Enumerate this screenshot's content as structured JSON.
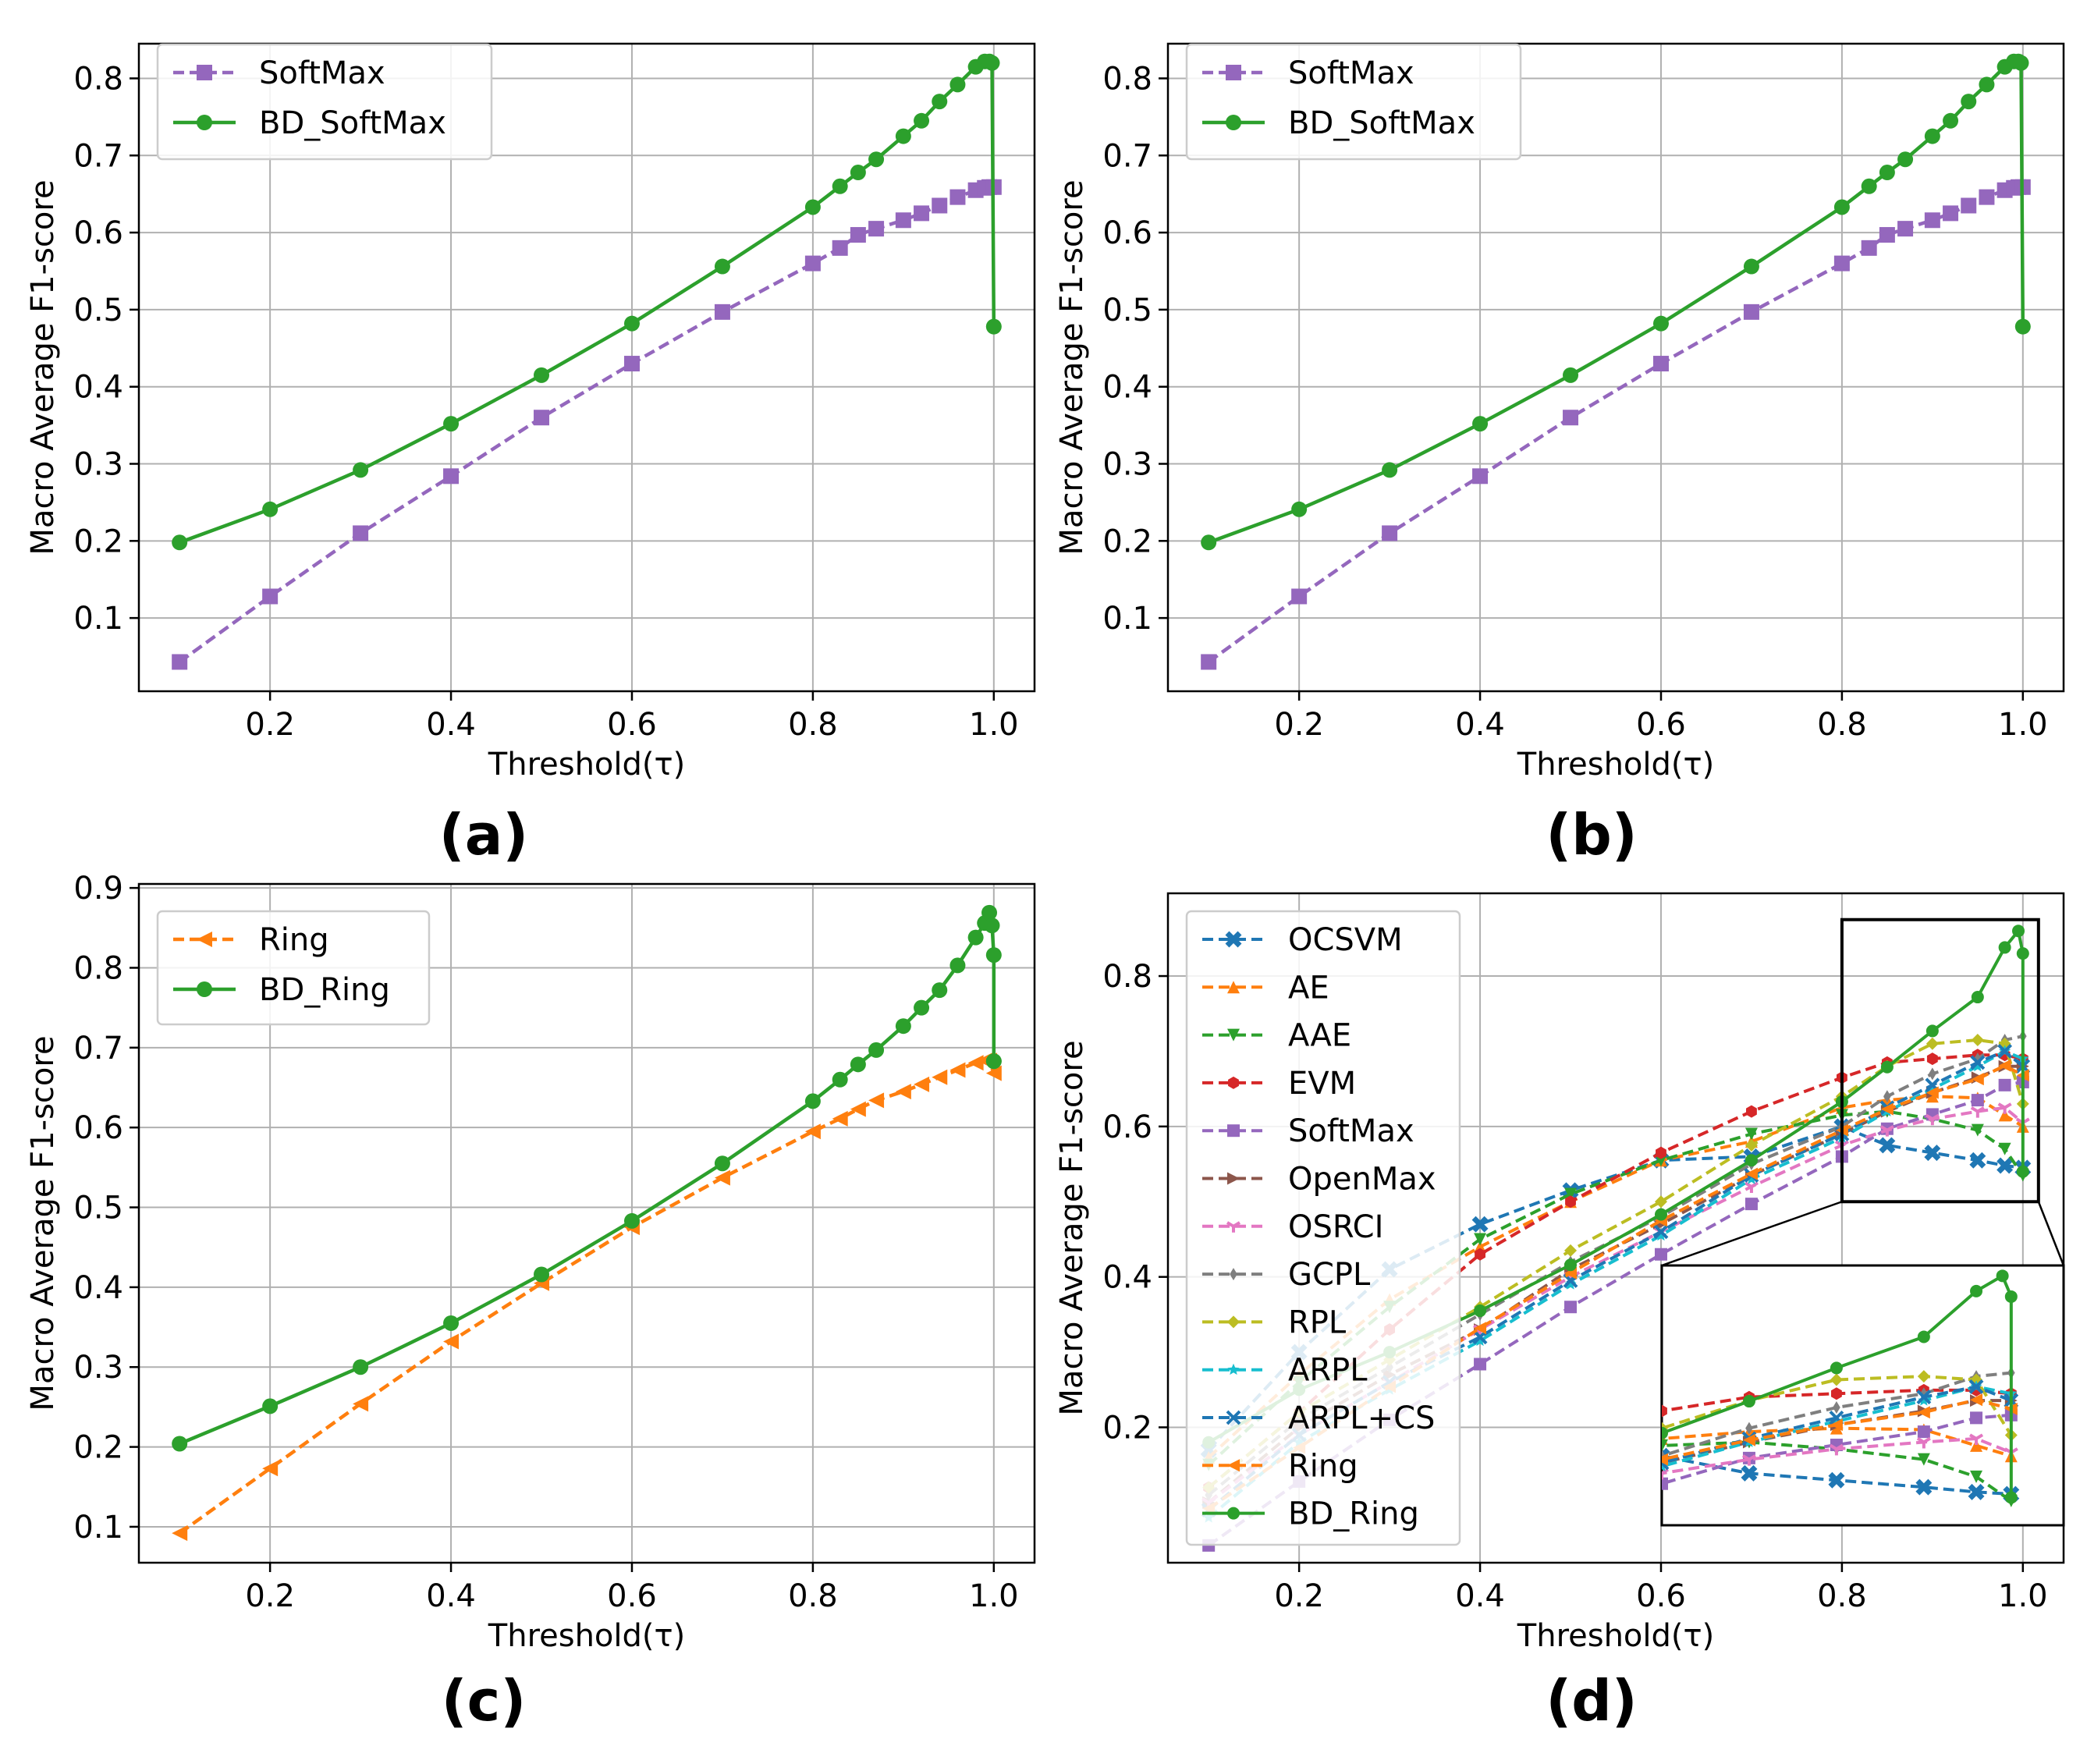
{
  "figure": {
    "panel_labels": [
      "(a)",
      "(b)",
      "(c)",
      "(d)"
    ]
  },
  "chart_data": [
    {
      "id": "a",
      "type": "line",
      "title": "",
      "xlabel": "Threshold(τ)",
      "ylabel": "Macro Average F1-score",
      "xlim": [
        0.055,
        1.045
      ],
      "ylim": [
        0.005,
        0.845
      ],
      "xticks": [
        0.2,
        0.4,
        0.6,
        0.8,
        1.0
      ],
      "xtick_labels": [
        "0.2",
        "0.4",
        "0.6",
        "0.8",
        "1.0"
      ],
      "yticks": [
        0.1,
        0.2,
        0.3,
        0.4,
        0.5,
        0.6,
        0.7,
        0.8
      ],
      "ytick_labels": [
        "0.1",
        "0.2",
        "0.3",
        "0.4",
        "0.5",
        "0.6",
        "0.7",
        "0.8"
      ],
      "grid": true,
      "legend_position": "top-left",
      "series": [
        {
          "name": "SoftMax",
          "color": "#9467bd",
          "dash": "dashed",
          "marker": "square",
          "x": [
            0.1,
            0.2,
            0.3,
            0.4,
            0.5,
            0.6,
            0.7,
            0.8,
            0.83,
            0.85,
            0.87,
            0.9,
            0.92,
            0.94,
            0.96,
            0.98,
            0.99,
            0.995,
            1.0
          ],
          "y": [
            0.043,
            0.128,
            0.21,
            0.284,
            0.36,
            0.43,
            0.497,
            0.56,
            0.58,
            0.597,
            0.605,
            0.616,
            0.625,
            0.635,
            0.646,
            0.655,
            0.658,
            0.659,
            0.659
          ]
        },
        {
          "name": "BD_SoftMax",
          "color": "#2ca02c",
          "dash": "solid",
          "marker": "circle",
          "x": [
            0.1,
            0.2,
            0.3,
            0.4,
            0.5,
            0.6,
            0.7,
            0.8,
            0.83,
            0.85,
            0.87,
            0.9,
            0.92,
            0.94,
            0.96,
            0.98,
            0.99,
            0.995,
            0.998,
            1.0
          ],
          "y": [
            0.198,
            0.241,
            0.292,
            0.352,
            0.415,
            0.482,
            0.556,
            0.633,
            0.66,
            0.678,
            0.695,
            0.725,
            0.745,
            0.77,
            0.792,
            0.815,
            0.822,
            0.822,
            0.82,
            0.478
          ]
        }
      ]
    },
    {
      "id": "b",
      "type": "line",
      "title": "",
      "xlabel": "Threshold(τ)",
      "ylabel": "Macro Average F1-score",
      "xlim": [
        0.055,
        1.045
      ],
      "ylim": [
        0.005,
        0.845
      ],
      "xticks": [
        0.2,
        0.4,
        0.6,
        0.8,
        1.0
      ],
      "xtick_labels": [
        "0.2",
        "0.4",
        "0.6",
        "0.8",
        "1.0"
      ],
      "yticks": [
        0.1,
        0.2,
        0.3,
        0.4,
        0.5,
        0.6,
        0.7,
        0.8
      ],
      "ytick_labels": [
        "0.1",
        "0.2",
        "0.3",
        "0.4",
        "0.5",
        "0.6",
        "0.7",
        "0.8"
      ],
      "grid": true,
      "legend_position": "top-left",
      "series": [
        {
          "name": "SoftMax",
          "color": "#9467bd",
          "dash": "dashed",
          "marker": "square",
          "x": [
            0.1,
            0.2,
            0.3,
            0.4,
            0.5,
            0.6,
            0.7,
            0.8,
            0.83,
            0.85,
            0.87,
            0.9,
            0.92,
            0.94,
            0.96,
            0.98,
            0.99,
            0.995,
            1.0
          ],
          "y": [
            0.043,
            0.128,
            0.21,
            0.284,
            0.36,
            0.43,
            0.497,
            0.56,
            0.58,
            0.597,
            0.605,
            0.616,
            0.625,
            0.635,
            0.646,
            0.655,
            0.658,
            0.659,
            0.659
          ]
        },
        {
          "name": "BD_SoftMax",
          "color": "#2ca02c",
          "dash": "solid",
          "marker": "circle",
          "x": [
            0.1,
            0.2,
            0.3,
            0.4,
            0.5,
            0.6,
            0.7,
            0.8,
            0.83,
            0.85,
            0.87,
            0.9,
            0.92,
            0.94,
            0.96,
            0.98,
            0.99,
            0.995,
            0.998,
            1.0
          ],
          "y": [
            0.198,
            0.241,
            0.292,
            0.352,
            0.415,
            0.482,
            0.556,
            0.633,
            0.66,
            0.678,
            0.695,
            0.725,
            0.745,
            0.77,
            0.792,
            0.815,
            0.822,
            0.822,
            0.82,
            0.478
          ]
        }
      ]
    },
    {
      "id": "c",
      "type": "line",
      "title": "",
      "xlabel": "Threshold(τ)",
      "ylabel": "Macro Average F1-score",
      "xlim": [
        0.055,
        1.045
      ],
      "ylim": [
        0.055,
        0.905
      ],
      "xticks": [
        0.2,
        0.4,
        0.6,
        0.8,
        1.0
      ],
      "xtick_labels": [
        "0.2",
        "0.4",
        "0.6",
        "0.8",
        "1.0"
      ],
      "yticks": [
        0.1,
        0.2,
        0.3,
        0.4,
        0.5,
        0.6,
        0.7,
        0.8,
        0.9
      ],
      "ytick_labels": [
        "0.1",
        "0.2",
        "0.3",
        "0.4",
        "0.5",
        "0.6",
        "0.7",
        "0.8",
        "0.9"
      ],
      "grid": true,
      "legend_position": "top-left",
      "series": [
        {
          "name": "Ring",
          "color": "#ff7f0e",
          "dash": "dashed",
          "marker": "triangle-left",
          "x": [
            0.1,
            0.2,
            0.3,
            0.4,
            0.5,
            0.6,
            0.7,
            0.8,
            0.83,
            0.85,
            0.87,
            0.9,
            0.92,
            0.94,
            0.96,
            0.98,
            0.99,
            0.995,
            1.0
          ],
          "y": [
            0.092,
            0.173,
            0.254,
            0.332,
            0.405,
            0.475,
            0.537,
            0.595,
            0.611,
            0.623,
            0.634,
            0.645,
            0.654,
            0.663,
            0.672,
            0.681,
            0.684,
            0.684,
            0.668
          ]
        },
        {
          "name": "BD_Ring",
          "color": "#2ca02c",
          "dash": "solid",
          "marker": "circle",
          "x": [
            0.1,
            0.2,
            0.3,
            0.4,
            0.5,
            0.6,
            0.7,
            0.8,
            0.83,
            0.85,
            0.87,
            0.9,
            0.92,
            0.94,
            0.96,
            0.98,
            0.99,
            0.995,
            0.998,
            1.0,
            1.0,
            1.0
          ],
          "y": [
            0.204,
            0.251,
            0.3,
            0.355,
            0.416,
            0.483,
            0.555,
            0.633,
            0.66,
            0.679,
            0.697,
            0.727,
            0.75,
            0.772,
            0.803,
            0.838,
            0.856,
            0.869,
            0.853,
            0.816,
            0.683,
            0.683
          ]
        }
      ]
    },
    {
      "id": "d",
      "type": "line",
      "title": "",
      "xlabel": "Threshold(τ)",
      "ylabel": "Macro Average F1-score",
      "xlim": [
        0.055,
        1.045
      ],
      "ylim": [
        0.02,
        0.91
      ],
      "xticks": [
        0.2,
        0.4,
        0.6,
        0.8,
        1.0
      ],
      "xtick_labels": [
        "0.2",
        "0.4",
        "0.6",
        "0.8",
        "1.0"
      ],
      "yticks": [
        0.2,
        0.4,
        0.6,
        0.8
      ],
      "ytick_labels": [
        "0.2",
        "0.4",
        "0.6",
        "0.8"
      ],
      "grid": true,
      "legend_position": "top-left",
      "inset": {
        "xlim": [
          0.8,
          1.0
        ],
        "ylim": [
          0.5,
          0.875
        ]
      },
      "series": [
        {
          "name": "OCSVM",
          "color": "#1f77b4",
          "dash": "dashed",
          "marker": "x-filled",
          "x": [
            0.1,
            0.2,
            0.3,
            0.4,
            0.5,
            0.6,
            0.7,
            0.8,
            0.85,
            0.9,
            0.95,
            0.98,
            1.0
          ],
          "y": [
            0.17,
            0.3,
            0.41,
            0.47,
            0.515,
            0.555,
            0.56,
            0.6,
            0.575,
            0.565,
            0.555,
            0.548,
            0.545
          ]
        },
        {
          "name": "AE",
          "color": "#ff7f0e",
          "dash": "dashed",
          "marker": "triangle-up",
          "x": [
            0.1,
            0.2,
            0.3,
            0.4,
            0.5,
            0.6,
            0.7,
            0.8,
            0.85,
            0.9,
            0.95,
            0.98,
            1.0
          ],
          "y": [
            0.16,
            0.27,
            0.37,
            0.44,
            0.5,
            0.555,
            0.58,
            0.625,
            0.635,
            0.64,
            0.638,
            0.615,
            0.6
          ]
        },
        {
          "name": "AAE",
          "color": "#2ca02c",
          "dash": "dashed",
          "marker": "triangle-down",
          "x": [
            0.1,
            0.2,
            0.3,
            0.4,
            0.5,
            0.6,
            0.7,
            0.8,
            0.85,
            0.9,
            0.95,
            0.98,
            1.0
          ],
          "y": [
            0.15,
            0.26,
            0.36,
            0.45,
            0.51,
            0.555,
            0.59,
            0.615,
            0.62,
            0.61,
            0.595,
            0.57,
            0.535
          ]
        },
        {
          "name": "EVM",
          "color": "#d62728",
          "dash": "dashed",
          "marker": "hexagon",
          "x": [
            0.1,
            0.2,
            0.3,
            0.4,
            0.5,
            0.6,
            0.7,
            0.8,
            0.85,
            0.9,
            0.95,
            0.98,
            1.0
          ],
          "y": [
            0.12,
            0.22,
            0.33,
            0.43,
            0.5,
            0.565,
            0.62,
            0.665,
            0.685,
            0.69,
            0.695,
            0.695,
            0.69
          ]
        },
        {
          "name": "SoftMax",
          "color": "#9467bd",
          "dash": "dashed",
          "marker": "square",
          "x": [
            0.1,
            0.2,
            0.3,
            0.4,
            0.5,
            0.6,
            0.7,
            0.8,
            0.85,
            0.9,
            0.95,
            0.98,
            1.0
          ],
          "y": [
            0.043,
            0.128,
            0.21,
            0.284,
            0.36,
            0.43,
            0.497,
            0.56,
            0.597,
            0.616,
            0.635,
            0.655,
            0.659
          ]
        },
        {
          "name": "OpenMax",
          "color": "#8c564b",
          "dash": "dashed",
          "marker": "triangle-right",
          "x": [
            0.1,
            0.2,
            0.3,
            0.4,
            0.5,
            0.6,
            0.7,
            0.8,
            0.85,
            0.9,
            0.95,
            0.98,
            1.0
          ],
          "y": [
            0.1,
            0.2,
            0.27,
            0.33,
            0.41,
            0.47,
            0.535,
            0.59,
            0.62,
            0.645,
            0.665,
            0.68,
            0.68
          ]
        },
        {
          "name": "OSRCI",
          "color": "#e377c2",
          "dash": "dashed",
          "marker": "tri-down",
          "x": [
            0.1,
            0.2,
            0.3,
            0.4,
            0.5,
            0.6,
            0.7,
            0.8,
            0.85,
            0.9,
            0.95,
            0.98,
            1.0
          ],
          "y": [
            0.1,
            0.19,
            0.26,
            0.33,
            0.4,
            0.46,
            0.52,
            0.575,
            0.595,
            0.61,
            0.62,
            0.625,
            0.605
          ]
        },
        {
          "name": "GCPL",
          "color": "#7f7f7f",
          "dash": "dashed",
          "marker": "thin-diamond",
          "x": [
            0.1,
            0.2,
            0.3,
            0.4,
            0.5,
            0.6,
            0.7,
            0.8,
            0.85,
            0.9,
            0.95,
            0.98,
            1.0
          ],
          "y": [
            0.11,
            0.21,
            0.28,
            0.35,
            0.42,
            0.48,
            0.55,
            0.6,
            0.64,
            0.67,
            0.69,
            0.715,
            0.72
          ]
        },
        {
          "name": "RPL",
          "color": "#bcbd22",
          "dash": "dashed",
          "marker": "diamond",
          "x": [
            0.1,
            0.2,
            0.3,
            0.4,
            0.5,
            0.6,
            0.7,
            0.8,
            0.85,
            0.9,
            0.95,
            0.98,
            1.0
          ],
          "y": [
            0.12,
            0.22,
            0.29,
            0.36,
            0.435,
            0.5,
            0.575,
            0.64,
            0.68,
            0.71,
            0.715,
            0.71,
            0.63
          ]
        },
        {
          "name": "ARPL",
          "color": "#17becf",
          "dash": "dashed",
          "marker": "star",
          "x": [
            0.1,
            0.2,
            0.3,
            0.4,
            0.5,
            0.6,
            0.7,
            0.8,
            0.85,
            0.9,
            0.95,
            0.98,
            1.0
          ],
          "y": [
            0.08,
            0.18,
            0.25,
            0.315,
            0.39,
            0.455,
            0.53,
            0.585,
            0.62,
            0.65,
            0.68,
            0.7,
            0.69
          ]
        },
        {
          "name": "ARPL+CS",
          "color": "#1f77b4",
          "dash": "dashed",
          "marker": "x",
          "x": [
            0.1,
            0.2,
            0.3,
            0.4,
            0.5,
            0.6,
            0.7,
            0.8,
            0.85,
            0.9,
            0.95,
            0.98,
            1.0
          ],
          "y": [
            0.09,
            0.19,
            0.26,
            0.32,
            0.395,
            0.46,
            0.535,
            0.59,
            0.625,
            0.655,
            0.685,
            0.7,
            0.68
          ]
        },
        {
          "name": "Ring",
          "color": "#ff7f0e",
          "dash": "dashed",
          "marker": "triangle-left",
          "x": [
            0.1,
            0.2,
            0.3,
            0.4,
            0.5,
            0.6,
            0.7,
            0.8,
            0.85,
            0.9,
            0.95,
            0.98,
            1.0
          ],
          "y": [
            0.092,
            0.173,
            0.254,
            0.332,
            0.405,
            0.475,
            0.537,
            0.595,
            0.623,
            0.645,
            0.663,
            0.681,
            0.668
          ]
        },
        {
          "name": "BD_Ring",
          "color": "#2ca02c",
          "dash": "solid",
          "marker": "circle",
          "x": [
            0.1,
            0.2,
            0.3,
            0.4,
            0.5,
            0.6,
            0.7,
            0.8,
            0.85,
            0.9,
            0.95,
            0.98,
            0.995,
            1.0,
            1.0
          ],
          "y": [
            0.18,
            0.25,
            0.3,
            0.355,
            0.416,
            0.483,
            0.555,
            0.633,
            0.679,
            0.727,
            0.772,
            0.838,
            0.86,
            0.83,
            0.54
          ]
        }
      ]
    }
  ]
}
